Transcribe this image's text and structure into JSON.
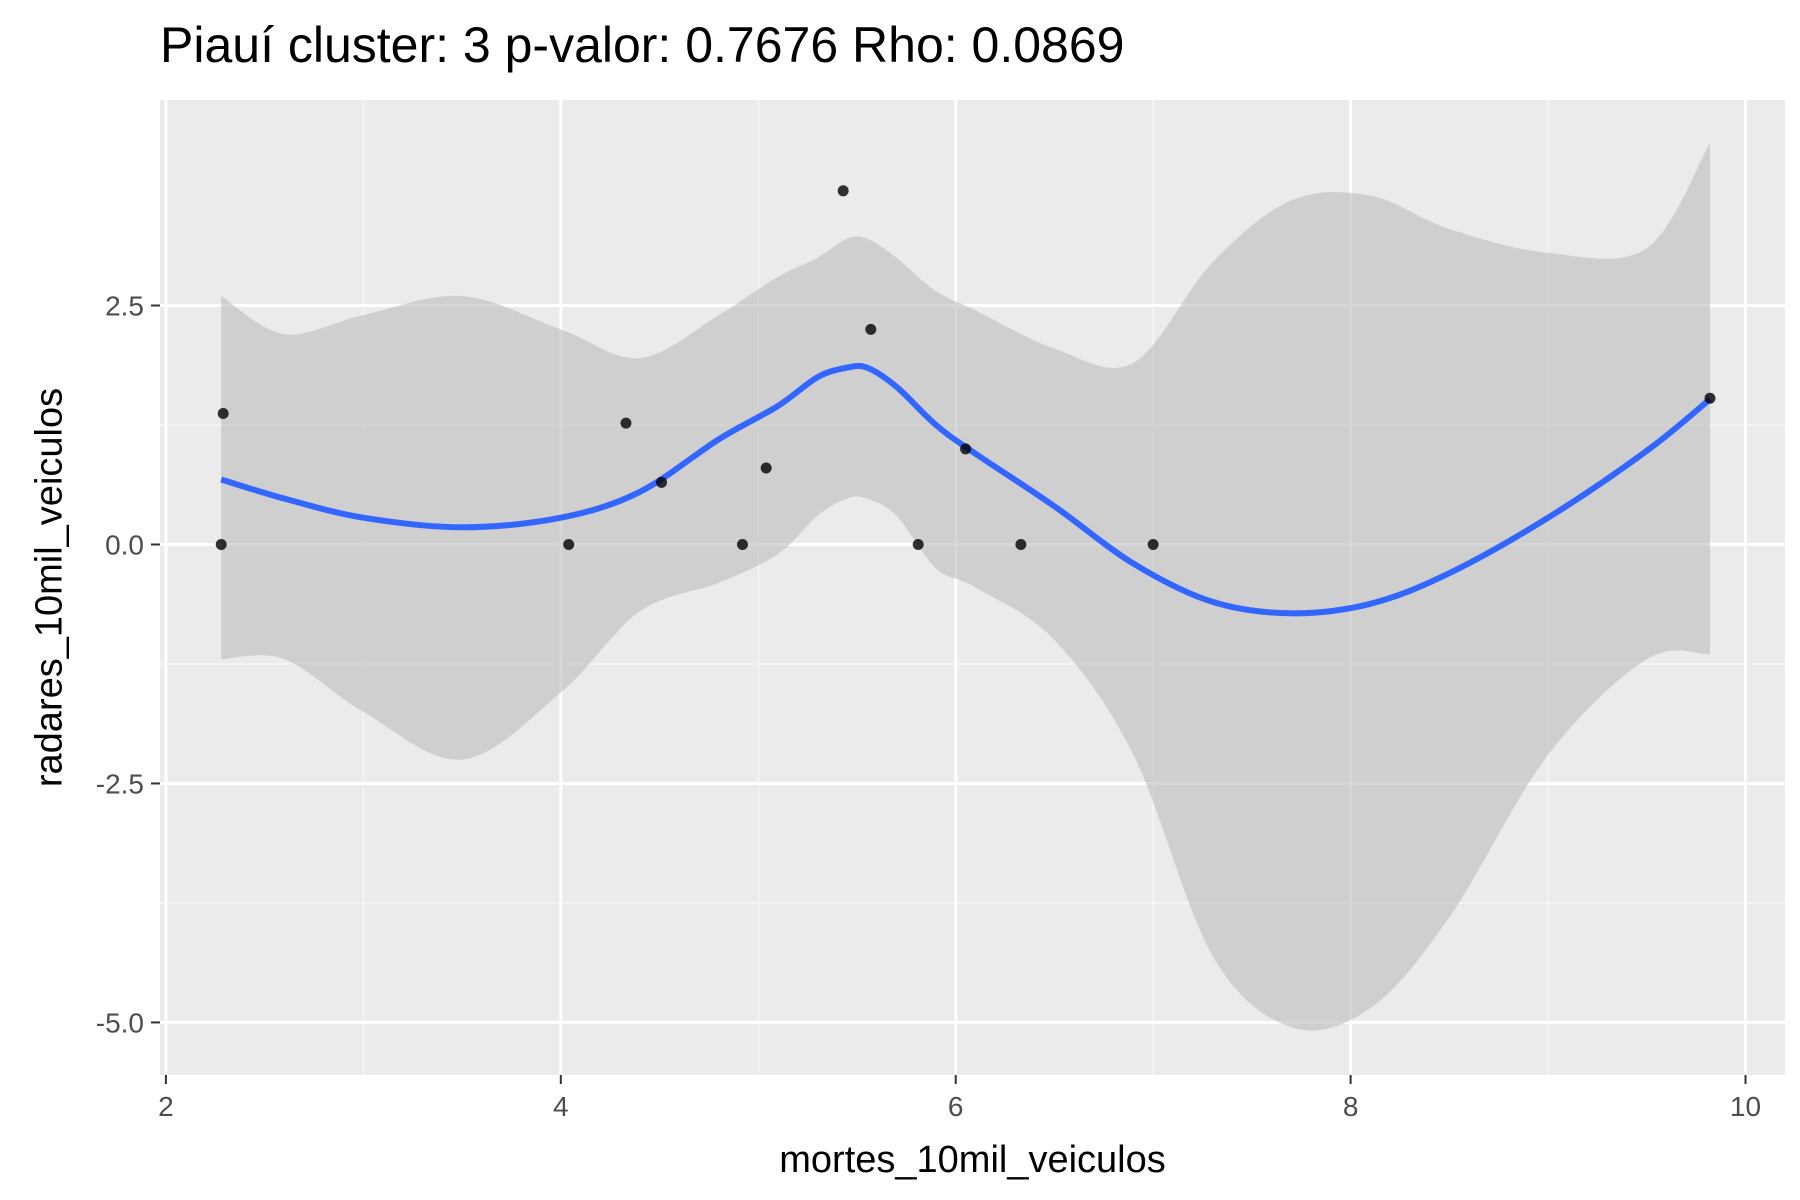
{
  "chart_data": {
    "type": "scatter",
    "title": "Piauí cluster: 3 p-valor: 0.7676 Rho: 0.0869",
    "xlabel": "mortes_10mil_veiculos",
    "ylabel": "radares_10mil_veiculos",
    "xlim": [
      1.97,
      10.2
    ],
    "ylim": [
      -5.55,
      4.65
    ],
    "x_ticks": [
      2,
      4,
      6,
      8,
      10
    ],
    "x_tick_labels": [
      "2",
      "4",
      "6",
      "8",
      "10"
    ],
    "y_ticks": [
      -5.0,
      -2.5,
      0.0,
      2.5
    ],
    "y_tick_labels": [
      "-5.0",
      "-2.5",
      "0.0",
      "2.5"
    ],
    "grid": true,
    "colors": {
      "panel_background": "#ebebeb",
      "grid_major": "#ffffff",
      "grid_minor": "#f6f6f6",
      "points": "#000000",
      "smooth_line": "#3366ff",
      "confidence_band": "#bdbdbd"
    },
    "points": [
      {
        "x": 2.29,
        "y": 1.37
      },
      {
        "x": 2.28,
        "y": 0.0
      },
      {
        "x": 4.04,
        "y": 0.0
      },
      {
        "x": 4.33,
        "y": 1.27
      },
      {
        "x": 4.51,
        "y": 0.65
      },
      {
        "x": 4.92,
        "y": 0.0
      },
      {
        "x": 5.04,
        "y": 0.8
      },
      {
        "x": 5.43,
        "y": 3.7
      },
      {
        "x": 5.57,
        "y": 2.25
      },
      {
        "x": 5.81,
        "y": 0.0
      },
      {
        "x": 6.05,
        "y": 1.0
      },
      {
        "x": 6.33,
        "y": 0.0
      },
      {
        "x": 7.0,
        "y": 0.0
      },
      {
        "x": 9.82,
        "y": 1.53
      }
    ],
    "smooth": {
      "x": [
        2.28,
        2.6,
        3.0,
        3.5,
        4.0,
        4.4,
        4.8,
        5.1,
        5.3,
        5.45,
        5.55,
        5.7,
        5.9,
        6.1,
        6.5,
        6.9,
        7.3,
        7.7,
        8.1,
        8.5,
        9.0,
        9.5,
        9.82
      ],
      "y": [
        0.68,
        0.48,
        0.28,
        0.18,
        0.28,
        0.55,
        1.1,
        1.45,
        1.75,
        1.85,
        1.85,
        1.65,
        1.25,
        0.95,
        0.4,
        -0.2,
        -0.6,
        -0.72,
        -0.62,
        -0.3,
        0.28,
        0.98,
        1.52
      ],
      "upper": [
        2.6,
        2.2,
        2.4,
        2.6,
        2.25,
        1.95,
        2.4,
        2.8,
        3.0,
        3.2,
        3.2,
        3.0,
        2.65,
        2.45,
        2.05,
        1.9,
        2.95,
        3.6,
        3.65,
        3.3,
        3.05,
        3.1,
        4.2
      ],
      "lower": [
        -1.2,
        -1.2,
        -1.75,
        -2.25,
        -1.55,
        -0.7,
        -0.4,
        -0.1,
        0.3,
        0.48,
        0.48,
        0.3,
        -0.25,
        -0.45,
        -1.0,
        -2.2,
        -4.3,
        -5.05,
        -4.85,
        -3.9,
        -2.2,
        -1.2,
        -1.15
      ]
    }
  }
}
